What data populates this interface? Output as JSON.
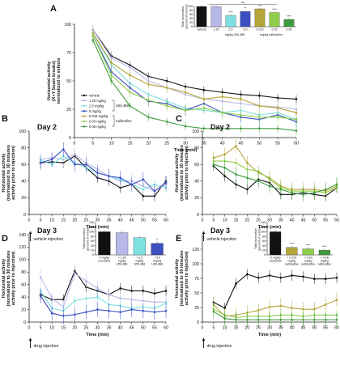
{
  "figure": {
    "panel_letters": [
      "A",
      "B",
      "C",
      "D",
      "E"
    ],
    "day_titles": {
      "B": "Day 2",
      "C": "Day 2",
      "D": "Day 3",
      "E": "Day 3"
    },
    "x_label": "Time (min)",
    "y_label_A": [
      "Horizontal activity",
      "(X+Y beam breaks)",
      "normalized to vehicle"
    ],
    "y_label_BCDE": [
      "Horizontal activity",
      "(normalized to 30 minutes",
      "activity prior to injection)"
    ],
    "annotation_vehicle": "vehicle injection",
    "annotation_drug": "drug injection",
    "legend_A": [
      "vehicle",
      "1.25 mg/kg",
      "2.5 mg/kg",
      "5 mg/kg",
      "0.015 mg/kg",
      "0.03 mg/kg",
      "0.06 mg/kg"
    ],
    "legend_A_groups": [
      "U50,488",
      "nalfurafine"
    ],
    "x_ticks": [
      "0",
      "5",
      "10",
      "15",
      "20",
      "25",
      "30",
      "35",
      "40",
      "45",
      "50",
      "55",
      "60"
    ],
    "inset_A": {
      "ylabel": [
        "Total locomotion",
        "(percent of vehicle)"
      ],
      "yticks": [
        "0",
        "20",
        "40",
        "60",
        "80",
        "100"
      ],
      "cats": [
        "vehicle",
        "1.25",
        "2.5",
        "5.0",
        "0.015",
        "0.03",
        "0.06"
      ],
      "groups": [
        "mg/kg U50,488",
        "mg/kg nalfurafine"
      ],
      "stars": [
        "",
        "",
        "****",
        "**",
        "***",
        "****",
        "****"
      ],
      "ns": "ns"
    },
    "inset_D": {
      "ylabel": [
        "Total locomotion",
        "(percent of vehicle)"
      ],
      "yticks": [
        "0",
        "20",
        "40",
        "60",
        "80",
        "100",
        "120",
        "140"
      ],
      "cats": [
        "0 mg/kg",
        "+ 1.25",
        "+ 2.5",
        "+ 5.0"
      ],
      "cats2": [
        "morphine",
        "mg/kg",
        "mg/kg",
        "mg/kg"
      ],
      "cats3": [
        "",
        "U50,488",
        "U50,488",
        "U50,488"
      ],
      "stars": [
        "",
        "",
        "",
        "**"
      ]
    },
    "inset_E": {
      "ylabel": [
        "Total locomotion",
        "(percent of vehicle)"
      ],
      "yticks": [
        "0",
        "20",
        "40",
        "60",
        "80",
        "100",
        "120",
        "140"
      ],
      "cats": [
        "0 mg/kg",
        "+ 0.015",
        "+ 0.03",
        "+ 0.06"
      ],
      "cats2": [
        "morphine",
        "mg/kg",
        "mg/kg",
        "mg/kg"
      ],
      "cats3": [
        "",
        "nalfurafine",
        "nalfurafine",
        "nalfurafine"
      ],
      "stars": [
        "",
        "****",
        "****",
        "****"
      ]
    },
    "colors": {
      "vehicle": "#111111",
      "u125": "#b8b8e8",
      "u25": "#7ee0e0",
      "u5": "#3a4fc0",
      "n015": "#b5a53a",
      "n03": "#8fce4a",
      "n06": "#3d9c3d"
    }
  },
  "chart_data": [
    {
      "type": "line",
      "panel": "A",
      "xlabel": "Time (min)",
      "ylabel": "Horizontal activity (X+Y beam breaks) normalized to vehicle",
      "xlim": [
        0,
        60
      ],
      "ylim": [
        0,
        100
      ],
      "yticks": [
        0,
        25,
        50,
        75,
        100
      ],
      "x": [
        5,
        10,
        15,
        20,
        25,
        30,
        35,
        40,
        45,
        50,
        55,
        60
      ],
      "series": [
        {
          "name": "vehicle",
          "values": [
            95,
            72,
            64,
            54,
            50,
            45,
            42,
            40,
            38,
            37,
            35,
            34
          ]
        },
        {
          "name": "1.25 mg/kg",
          "values": [
            95,
            70,
            62,
            50,
            44,
            38,
            34,
            32,
            30,
            28,
            27,
            25
          ]
        },
        {
          "name": "2.5 mg/kg",
          "values": [
            92,
            64,
            48,
            38,
            32,
            26,
            24,
            22,
            24,
            20,
            22,
            16
          ]
        },
        {
          "name": "5 mg/kg",
          "values": [
            90,
            58,
            44,
            32,
            30,
            24,
            30,
            22,
            18,
            16,
            20,
            14
          ]
        },
        {
          "name": "0.015 mg/kg",
          "values": [
            92,
            66,
            55,
            47,
            44,
            40,
            34,
            36,
            34,
            28,
            26,
            22
          ]
        },
        {
          "name": "0.03 mg/kg",
          "values": [
            90,
            55,
            40,
            33,
            28,
            24,
            26,
            22,
            20,
            18,
            18,
            16
          ]
        },
        {
          "name": "0.06 mg/kg",
          "values": [
            86,
            50,
            28,
            18,
            14,
            10,
            8,
            8,
            8,
            8,
            8,
            6
          ]
        }
      ]
    },
    {
      "type": "bar",
      "panel": "A-inset",
      "ylabel": "Total locomotion (percent of vehicle)",
      "ylim": [
        0,
        100
      ],
      "categories": [
        "vehicle",
        "1.25",
        "2.5",
        "5.0",
        "0.015",
        "0.03",
        "0.06"
      ],
      "values": [
        100,
        100,
        56,
        75,
        88,
        70,
        36
      ]
    },
    {
      "type": "line",
      "panel": "B",
      "title": "Day 2",
      "xlabel": "Time (min)",
      "ylabel": "Horizontal activity (normalized to 30 minutes activity prior to injection)",
      "xlim": [
        0,
        60
      ],
      "ylim": [
        0,
        100
      ],
      "yticks": [
        0,
        20,
        40,
        60,
        80,
        100
      ],
      "x": [
        5,
        10,
        15,
        20,
        25,
        30,
        35,
        40,
        45,
        50,
        55,
        60
      ],
      "series": [
        {
          "name": "vehicle",
          "values": [
            62,
            63,
            62,
            70,
            56,
            44,
            40,
            32,
            36,
            22,
            22,
            40
          ]
        },
        {
          "name": "1.25 mg/kg",
          "values": [
            66,
            68,
            66,
            72,
            62,
            54,
            46,
            40,
            40,
            34,
            28,
            36
          ]
        },
        {
          "name": "2.5 mg/kg",
          "values": [
            65,
            60,
            70,
            62,
            56,
            50,
            46,
            42,
            36,
            30,
            36,
            32
          ]
        },
        {
          "name": "5 mg/kg",
          "values": [
            62,
            66,
            78,
            60,
            60,
            50,
            46,
            44,
            36,
            42,
            28,
            38
          ]
        }
      ]
    },
    {
      "type": "line",
      "panel": "C",
      "title": "Day 2",
      "xlabel": "Time (min)",
      "ylabel": "Horizontal activity (normalized to 30 minutes activity prior to injection)",
      "xlim": [
        0,
        60
      ],
      "ylim": [
        0,
        100
      ],
      "yticks": [
        0,
        20,
        40,
        60,
        80,
        100
      ],
      "x": [
        5,
        10,
        15,
        20,
        25,
        30,
        35,
        40,
        45,
        50,
        55,
        60
      ],
      "series": [
        {
          "name": "vehicle",
          "values": [
            58,
            46,
            36,
            30,
            42,
            38,
            24,
            24,
            26,
            24,
            22,
            32
          ]
        },
        {
          "name": "0.015 mg/kg",
          "values": [
            68,
            72,
            82,
            62,
            50,
            44,
            34,
            30,
            30,
            30,
            28,
            34
          ]
        },
        {
          "name": "0.03 mg/kg",
          "values": [
            64,
            64,
            62,
            54,
            52,
            42,
            32,
            28,
            28,
            28,
            26,
            32
          ]
        },
        {
          "name": "0.06 mg/kg",
          "values": [
            60,
            56,
            48,
            44,
            40,
            34,
            30,
            26,
            24,
            26,
            30,
            36
          ]
        }
      ]
    },
    {
      "type": "line",
      "panel": "D",
      "title": "Day 3",
      "xlabel": "Time (min)",
      "ylabel": "Horizontal activity (normalized to 30 minutes activity prior to injection)",
      "xlim": [
        0,
        60
      ],
      "ylim": [
        0,
        140
      ],
      "yticks": [
        0,
        20,
        40,
        60,
        80,
        100,
        120,
        140
      ],
      "x": [
        5,
        10,
        15,
        20,
        25,
        30,
        35,
        40,
        45,
        50,
        55,
        60
      ],
      "series": [
        {
          "name": "vehicle",
          "values": [
            44,
            36,
            36,
            82,
            56,
            50,
            44,
            54,
            50,
            50,
            46,
            50
          ]
        },
        {
          "name": "1.25 mg/kg",
          "values": [
            72,
            38,
            24,
            78,
            66,
            54,
            44,
            38,
            36,
            34,
            32,
            32
          ]
        },
        {
          "name": "2.5 mg/kg",
          "values": [
            50,
            22,
            18,
            34,
            38,
            40,
            28,
            26,
            22,
            24,
            22,
            30
          ]
        },
        {
          "name": "5 mg/kg",
          "values": [
            42,
            14,
            10,
            12,
            16,
            20,
            18,
            16,
            20,
            18,
            16,
            18
          ]
        }
      ]
    },
    {
      "type": "bar",
      "panel": "D-inset",
      "ylabel": "Total locomotion (percent of vehicle)",
      "ylim": [
        0,
        140
      ],
      "categories": [
        "0 mg/kg morphine",
        "+ 1.25 mg/kg U50,488",
        "+ 2.5 mg/kg U50,488",
        "+ 5.0 mg/kg U50,488"
      ],
      "values": [
        100,
        96,
        74,
        50
      ]
    },
    {
      "type": "line",
      "panel": "E",
      "title": "Day 3",
      "xlabel": "Time (min)",
      "ylabel": "Horizontal activity (normalized to 30 minutes activity prior to injection)",
      "xlim": [
        0,
        60
      ],
      "ylim": [
        0,
        150
      ],
      "yticks": [
        0,
        25,
        50,
        75,
        100,
        125
      ],
      "x": [
        5,
        10,
        15,
        20,
        25,
        30,
        35,
        40,
        45,
        50,
        55,
        60
      ],
      "series": [
        {
          "name": "vehicle",
          "values": [
            34,
            24,
            66,
            82,
            76,
            80,
            76,
            80,
            78,
            74,
            74,
            76
          ]
        },
        {
          "name": "0.015 mg/kg",
          "values": [
            30,
            10,
            12,
            16,
            20,
            26,
            28,
            24,
            22,
            22,
            30,
            38
          ]
        },
        {
          "name": "0.03 mg/kg",
          "values": [
            22,
            12,
            8,
            10,
            10,
            10,
            12,
            12,
            10,
            12,
            12,
            12
          ]
        },
        {
          "name": "0.06 mg/kg",
          "values": [
            18,
            6,
            4,
            4,
            4,
            4,
            4,
            4,
            4,
            4,
            4,
            4
          ]
        }
      ]
    },
    {
      "type": "bar",
      "panel": "E-inset",
      "ylabel": "Total locomotion (percent of vehicle)",
      "ylim": [
        0,
        140
      ],
      "categories": [
        "0 mg/kg morphine",
        "+ 0.015 mg/kg nalfurafine",
        "+ 0.03 mg/kg nalfurafine",
        "+ 0.06 mg/kg nalfurafine"
      ],
      "values": [
        100,
        32,
        26,
        20
      ]
    }
  ]
}
